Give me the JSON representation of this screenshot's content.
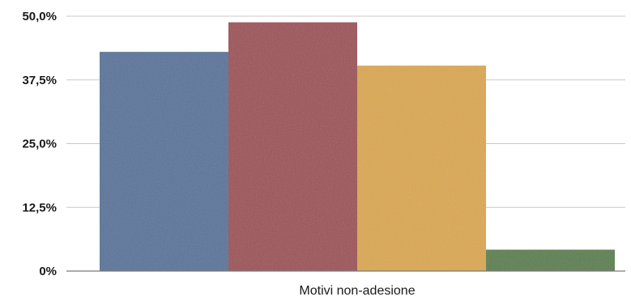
{
  "chart_data": {
    "type": "bar",
    "xlabel": "Motivi non-adesione",
    "ylabel": "",
    "ylim": [
      0,
      50
    ],
    "yticks": [
      {
        "value": 0,
        "label": "0%"
      },
      {
        "value": 12.5,
        "label": "12,5%"
      },
      {
        "value": 25,
        "label": "25,0%"
      },
      {
        "value": 37.5,
        "label": "37,5%"
      },
      {
        "value": 50,
        "label": "50,0%"
      }
    ],
    "grid": true,
    "series": [
      {
        "values": [
          43.0
        ],
        "color": "#56739a"
      },
      {
        "values": [
          48.8
        ],
        "color": "#9c4f55"
      },
      {
        "values": [
          40.3
        ],
        "color": "#dba84e"
      },
      {
        "values": [
          4.2
        ],
        "color": "#5a7f4c"
      }
    ]
  }
}
